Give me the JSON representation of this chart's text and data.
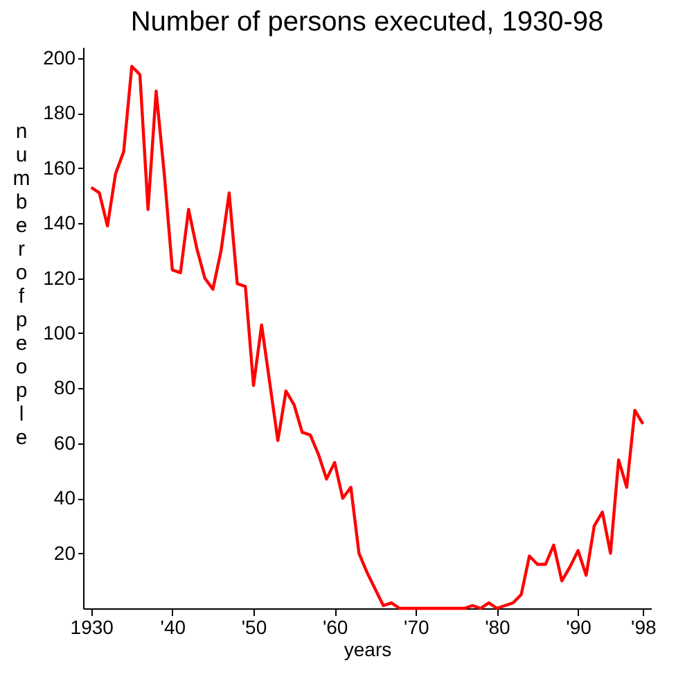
{
  "chart_data": {
    "type": "line",
    "title": "Number of persons executed, 1930-98",
    "xlabel": "years",
    "ylabel": "number of people",
    "x": [
      1930,
      1931,
      1932,
      1933,
      1934,
      1935,
      1936,
      1937,
      1938,
      1939,
      1940,
      1941,
      1942,
      1943,
      1944,
      1945,
      1946,
      1947,
      1948,
      1949,
      1950,
      1951,
      1952,
      1953,
      1954,
      1955,
      1956,
      1957,
      1958,
      1959,
      1960,
      1961,
      1962,
      1963,
      1964,
      1965,
      1966,
      1967,
      1968,
      1969,
      1970,
      1971,
      1972,
      1973,
      1974,
      1975,
      1976,
      1977,
      1978,
      1979,
      1980,
      1981,
      1982,
      1983,
      1984,
      1985,
      1986,
      1987,
      1988,
      1989,
      1990,
      1991,
      1992,
      1993,
      1994,
      1995,
      1996,
      1997,
      1998
    ],
    "series": [
      {
        "color": "#ff0000",
        "values": [
          153,
          151,
          139,
          158,
          166,
          197,
          194,
          145,
          188,
          158,
          123,
          122,
          145,
          131,
          120,
          116,
          130,
          151,
          118,
          117,
          81,
          103,
          82,
          61,
          79,
          74,
          64,
          63,
          56,
          47,
          53,
          40,
          44,
          20,
          13,
          7,
          1,
          2,
          0,
          0,
          0,
          0,
          0,
          0,
          0,
          0,
          0,
          1,
          0,
          2,
          0,
          1,
          2,
          5,
          19,
          16,
          16,
          23,
          10,
          15,
          21,
          12,
          30,
          35,
          20,
          54,
          44,
          72,
          67
        ]
      }
    ],
    "xlim": [
      1929,
      1999
    ],
    "ylim": [
      0,
      204
    ],
    "xticks": [
      {
        "value": 1930,
        "label": "1930"
      },
      {
        "value": 1940,
        "label": "'40"
      },
      {
        "value": 1950,
        "label": "'50"
      },
      {
        "value": 1960,
        "label": "'60"
      },
      {
        "value": 1970,
        "label": "'70"
      },
      {
        "value": 1980,
        "label": "'80"
      },
      {
        "value": 1990,
        "label": "'90"
      },
      {
        "value": 1998,
        "label": "'98"
      }
    ],
    "yticks": [
      20,
      40,
      60,
      80,
      100,
      120,
      140,
      160,
      180,
      200
    ],
    "grid": false,
    "marker": "none",
    "line_style": "solid"
  }
}
